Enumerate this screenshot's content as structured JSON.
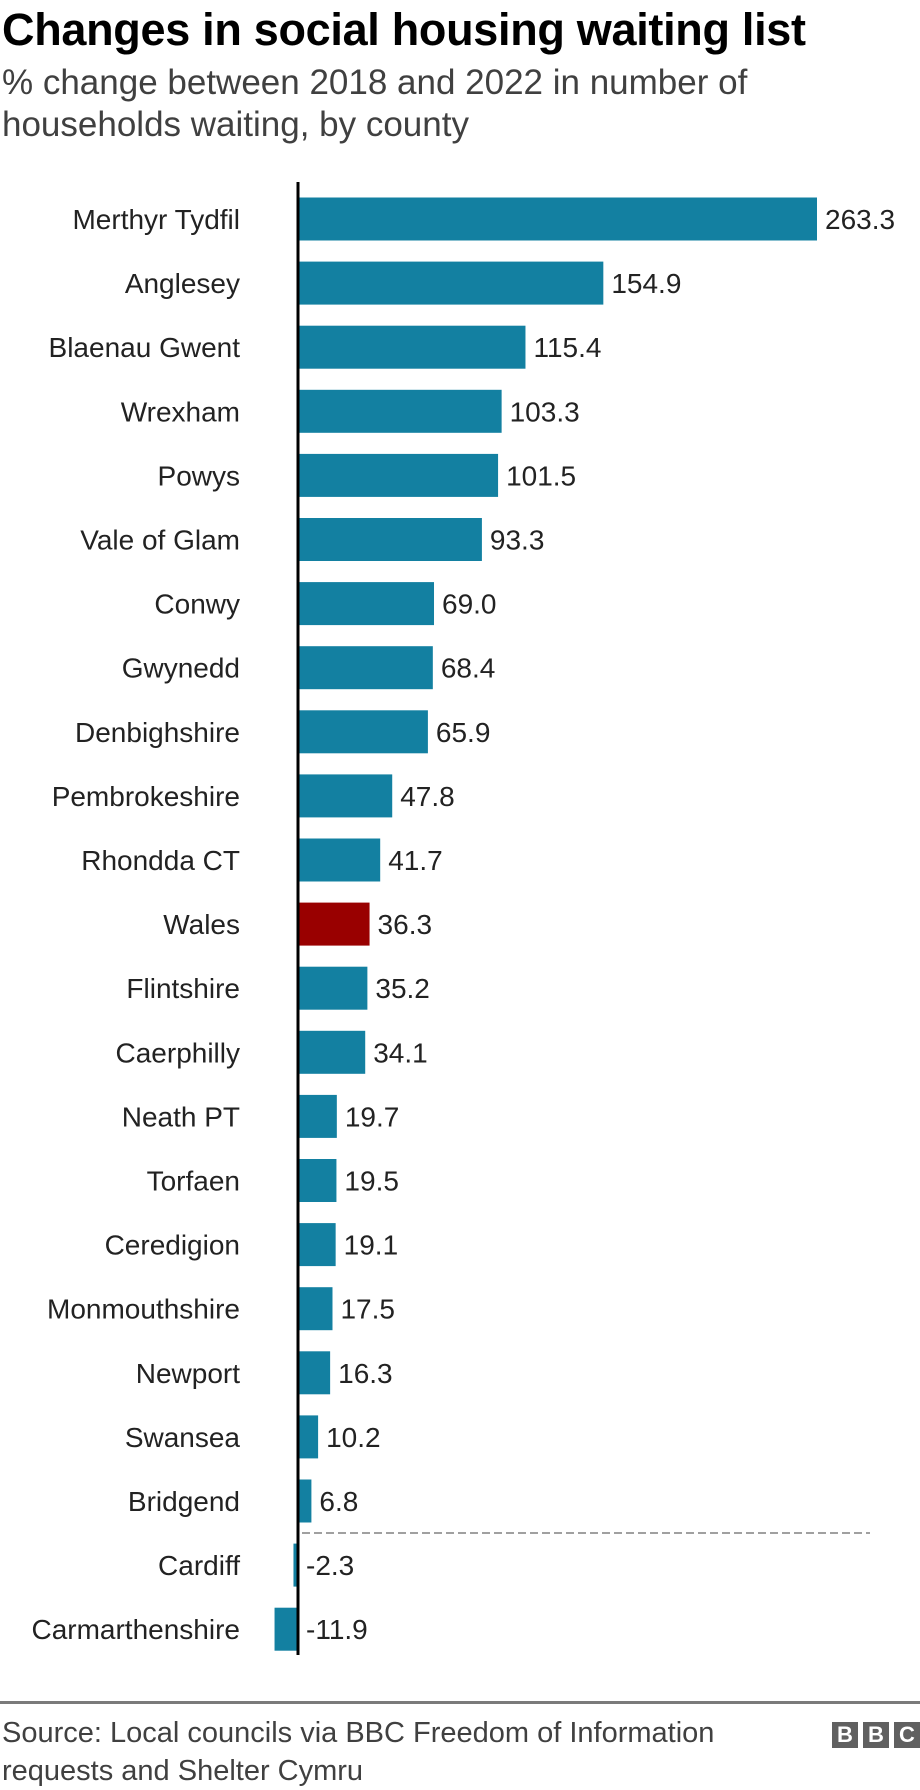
{
  "chart_data": {
    "type": "bar",
    "orientation": "horizontal",
    "title": "Changes in social housing waiting list",
    "subtitle": "% change between 2018 and 2022 in number of households waiting, by county",
    "categories": [
      "Merthyr Tydfil",
      "Anglesey",
      "Blaenau Gwent",
      "Wrexham",
      "Powys",
      "Vale of Glam",
      "Conwy",
      "Gwynedd",
      "Denbighshire",
      "Pembrokeshire",
      "Rhondda CT",
      "Wales",
      "Flintshire",
      "Caerphilly",
      "Neath PT",
      "Torfaen",
      "Ceredigion",
      "Monmouthshire",
      "Newport",
      "Swansea",
      "Bridgend",
      "Cardiff",
      "Carmarthenshire"
    ],
    "values": [
      263.3,
      154.9,
      115.4,
      103.3,
      101.5,
      93.3,
      69.0,
      68.4,
      65.9,
      47.8,
      41.7,
      36.3,
      35.2,
      34.1,
      19.7,
      19.5,
      19.1,
      17.5,
      16.3,
      10.2,
      6.8,
      -2.3,
      -11.9
    ],
    "labels": [
      "263.3",
      "154.9",
      "115.4",
      "103.3",
      "101.5",
      "93.3",
      "69.0",
      "68.4",
      "65.9",
      "47.8",
      "41.7",
      "36.3",
      "35.2",
      "34.1",
      "19.7",
      "19.5",
      "19.1",
      "17.5",
      "16.3",
      "10.2",
      "6.8",
      "-2.3",
      "-11.9"
    ],
    "highlight": "Wales",
    "colors": {
      "bar": "#1380a1",
      "highlight": "#990000",
      "divider": "#a0a0a0"
    },
    "xlabel": "",
    "ylabel": "",
    "xlim": [
      -11.9,
      263.3
    ],
    "grid": false
  },
  "footer": {
    "source": "Source: Local councils via BBC Freedom of Information requests and Shelter Cymru",
    "logo": "BBC"
  }
}
